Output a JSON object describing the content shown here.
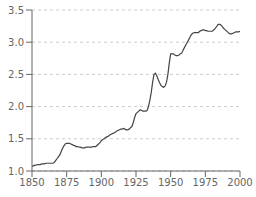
{
  "chart_data": {
    "type": "line",
    "x": [
      1850,
      1851,
      1852,
      1853,
      1854,
      1855,
      1856,
      1857,
      1858,
      1859,
      1860,
      1861,
      1862,
      1863,
      1864,
      1865,
      1866,
      1867,
      1868,
      1869,
      1870,
      1871,
      1872,
      1873,
      1874,
      1875,
      1876,
      1877,
      1878,
      1879,
      1880,
      1881,
      1882,
      1883,
      1884,
      1885,
      1886,
      1887,
      1888,
      1889,
      1890,
      1891,
      1892,
      1893,
      1894,
      1895,
      1896,
      1897,
      1898,
      1899,
      1900,
      1901,
      1902,
      1903,
      1904,
      1905,
      1906,
      1907,
      1908,
      1909,
      1910,
      1911,
      1912,
      1913,
      1914,
      1915,
      1916,
      1917,
      1918,
      1919,
      1920,
      1921,
      1922,
      1923,
      1924,
      1925,
      1926,
      1927,
      1928,
      1929,
      1930,
      1931,
      1932,
      1933,
      1934,
      1935,
      1936,
      1937,
      1938,
      1939,
      1940,
      1941,
      1942,
      1943,
      1944,
      1945,
      1946,
      1947,
      1948,
      1949,
      1950,
      1951,
      1952,
      1953,
      1954,
      1955,
      1956,
      1957,
      1958,
      1959,
      1960,
      1961,
      1962,
      1963,
      1964,
      1965,
      1966,
      1967,
      1968,
      1969,
      1970,
      1971,
      1972,
      1973,
      1974,
      1975,
      1976,
      1977,
      1978,
      1979,
      1980,
      1981,
      1982,
      1983,
      1984,
      1985,
      1986,
      1987,
      1988,
      1989,
      1990,
      1991,
      1992,
      1993,
      1994,
      1995,
      1996,
      1997,
      1998,
      1999,
      2000
    ],
    "values": [
      1.07,
      1.08,
      1.09,
      1.09,
      1.1,
      1.1,
      1.1,
      1.11,
      1.11,
      1.11,
      1.12,
      1.12,
      1.12,
      1.12,
      1.12,
      1.12,
      1.13,
      1.16,
      1.19,
      1.22,
      1.25,
      1.3,
      1.35,
      1.39,
      1.42,
      1.43,
      1.43,
      1.43,
      1.42,
      1.41,
      1.4,
      1.39,
      1.38,
      1.38,
      1.37,
      1.37,
      1.36,
      1.36,
      1.36,
      1.37,
      1.37,
      1.37,
      1.37,
      1.37,
      1.38,
      1.38,
      1.38,
      1.4,
      1.42,
      1.44,
      1.47,
      1.49,
      1.5,
      1.52,
      1.53,
      1.54,
      1.56,
      1.57,
      1.58,
      1.59,
      1.6,
      1.62,
      1.63,
      1.64,
      1.65,
      1.65,
      1.66,
      1.65,
      1.64,
      1.64,
      1.65,
      1.67,
      1.69,
      1.75,
      1.83,
      1.89,
      1.91,
      1.93,
      1.95,
      1.94,
      1.93,
      1.93,
      1.93,
      1.94,
      2.0,
      2.1,
      2.22,
      2.38,
      2.5,
      2.52,
      2.48,
      2.42,
      2.37,
      2.33,
      2.31,
      2.3,
      2.32,
      2.38,
      2.5,
      2.68,
      2.82,
      2.82,
      2.82,
      2.8,
      2.79,
      2.79,
      2.8,
      2.82,
      2.83,
      2.88,
      2.92,
      2.96,
      3.0,
      3.04,
      3.08,
      3.12,
      3.14,
      3.15,
      3.15,
      3.15,
      3.15,
      3.17,
      3.18,
      3.19,
      3.19,
      3.18,
      3.18,
      3.17,
      3.17,
      3.17,
      3.17,
      3.19,
      3.21,
      3.24,
      3.27,
      3.28,
      3.27,
      3.25,
      3.22,
      3.2,
      3.18,
      3.16,
      3.14,
      3.13,
      3.13,
      3.14,
      3.15,
      3.16,
      3.16,
      3.16,
      3.17
    ],
    "color": "#444444",
    "xlim": [
      1850,
      2000
    ],
    "xticks": [
      1850,
      1875,
      1900,
      1925,
      1950,
      1975,
      2000
    ],
    "ylim": [
      1.0,
      3.5
    ],
    "yticks": [
      {
        "value": 1.0,
        "label": "1.0"
      },
      1.5,
      {
        "value": 2.0,
        "label": "2.0"
      },
      2.5,
      {
        "value": 3.0,
        "label": "3.0"
      },
      3.5
    ],
    "grid": true
  }
}
